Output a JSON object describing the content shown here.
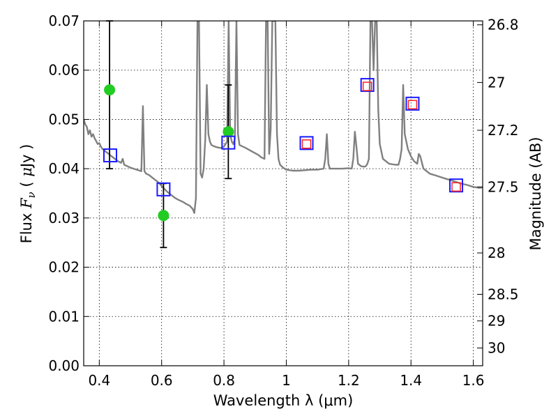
{
  "chart_data": {
    "type": "line",
    "title": "",
    "xlabel": "Wavelength  λ (μm)",
    "ylabel": "Flux  F_ν  ( μJy )",
    "ylabel_parts": {
      "prefix": "Flux  ",
      "symbol": "F",
      "subscript": "ν",
      "unit_open": "  ( ",
      "unit_mu": "μ",
      "unit_rest": "Jy )"
    },
    "y2label": "Magnitude (AB)",
    "xlim": [
      0.35,
      1.63
    ],
    "ylim": [
      0.0,
      0.07
    ],
    "grid": true,
    "x_ticks": [
      {
        "value": 0.4,
        "label": "0.4"
      },
      {
        "value": 0.6,
        "label": "0.6"
      },
      {
        "value": 0.8,
        "label": "0.8"
      },
      {
        "value": 1.0,
        "label": "1"
      },
      {
        "value": 1.2,
        "label": "1.2"
      },
      {
        "value": 1.4,
        "label": "1.4"
      },
      {
        "value": 1.6,
        "label": "1.6"
      }
    ],
    "y_ticks": [
      {
        "value": 0.0,
        "label": "0.00"
      },
      {
        "value": 0.01,
        "label": "0.01"
      },
      {
        "value": 0.02,
        "label": "0.02"
      },
      {
        "value": 0.03,
        "label": "0.03"
      },
      {
        "value": 0.04,
        "label": "0.04"
      },
      {
        "value": 0.05,
        "label": "0.05"
      },
      {
        "value": 0.06,
        "label": "0.06"
      },
      {
        "value": 0.07,
        "label": "0.07"
      }
    ],
    "y2_ticks": [
      {
        "flux": 0.0692,
        "label": "26.8"
      },
      {
        "flux": 0.0575,
        "label": "27"
      },
      {
        "flux": 0.0478,
        "label": "27.2"
      },
      {
        "flux": 0.0363,
        "label": "27.5"
      },
      {
        "flux": 0.0229,
        "label": "28"
      },
      {
        "flux": 0.0145,
        "label": "28.5"
      },
      {
        "flux": 0.0091,
        "label": "29"
      },
      {
        "flux": 0.0036,
        "label": "30"
      }
    ],
    "series": [
      {
        "kind": "line",
        "color": "#808080",
        "points": [
          [
            0.35,
            0.05
          ],
          [
            0.355,
            0.049
          ],
          [
            0.36,
            0.0485
          ],
          [
            0.365,
            0.047
          ],
          [
            0.37,
            0.0478
          ],
          [
            0.375,
            0.0465
          ],
          [
            0.38,
            0.047
          ],
          [
            0.385,
            0.0462
          ],
          [
            0.39,
            0.0456
          ],
          [
            0.395,
            0.045
          ],
          [
            0.4,
            0.0452
          ],
          [
            0.405,
            0.0445
          ],
          [
            0.41,
            0.044
          ],
          [
            0.415,
            0.0438
          ],
          [
            0.42,
            0.0435
          ],
          [
            0.43,
            0.043
          ],
          [
            0.44,
            0.0425
          ],
          [
            0.45,
            0.042
          ],
          [
            0.46,
            0.0415
          ],
          [
            0.47,
            0.0412
          ],
          [
            0.475,
            0.042
          ],
          [
            0.48,
            0.0408
          ],
          [
            0.49,
            0.0405
          ],
          [
            0.5,
            0.0402
          ],
          [
            0.51,
            0.04
          ],
          [
            0.52,
            0.0398
          ],
          [
            0.53,
            0.0396
          ],
          [
            0.535,
            0.0395
          ],
          [
            0.54,
            0.0527
          ],
          [
            0.545,
            0.0395
          ],
          [
            0.55,
            0.039
          ],
          [
            0.56,
            0.0387
          ],
          [
            0.57,
            0.0382
          ],
          [
            0.58,
            0.0377
          ],
          [
            0.59,
            0.0372
          ],
          [
            0.6,
            0.0365
          ],
          [
            0.61,
            0.0358
          ],
          [
            0.62,
            0.0352
          ],
          [
            0.63,
            0.0347
          ],
          [
            0.64,
            0.0342
          ],
          [
            0.65,
            0.0338
          ],
          [
            0.66,
            0.0335
          ],
          [
            0.67,
            0.0332
          ],
          [
            0.68,
            0.0328
          ],
          [
            0.69,
            0.0325
          ],
          [
            0.7,
            0.0318
          ],
          [
            0.705,
            0.031
          ],
          [
            0.71,
            0.034
          ],
          [
            0.715,
            0.07
          ],
          [
            0.72,
            0.07
          ],
          [
            0.725,
            0.039
          ],
          [
            0.73,
            0.0382
          ],
          [
            0.735,
            0.04
          ],
          [
            0.74,
            0.046
          ],
          [
            0.745,
            0.057
          ],
          [
            0.75,
            0.047
          ],
          [
            0.755,
            0.0455
          ],
          [
            0.76,
            0.0448
          ],
          [
            0.77,
            0.0445
          ],
          [
            0.78,
            0.0443
          ],
          [
            0.79,
            0.0442
          ],
          [
            0.8,
            0.0445
          ],
          [
            0.81,
            0.0455
          ],
          [
            0.815,
            0.07
          ],
          [
            0.82,
            0.047
          ],
          [
            0.825,
            0.0455
          ],
          [
            0.83,
            0.045
          ],
          [
            0.835,
            0.046
          ],
          [
            0.84,
            0.07
          ],
          [
            0.845,
            0.047
          ],
          [
            0.85,
            0.0448
          ],
          [
            0.87,
            0.0442
          ],
          [
            0.89,
            0.0435
          ],
          [
            0.91,
            0.0428
          ],
          [
            0.92,
            0.0423
          ],
          [
            0.93,
            0.042
          ],
          [
            0.935,
            0.07
          ],
          [
            0.94,
            0.07
          ],
          [
            0.945,
            0.043
          ],
          [
            0.95,
            0.048
          ],
          [
            0.955,
            0.07
          ],
          [
            0.96,
            0.07
          ],
          [
            0.965,
            0.07
          ],
          [
            0.97,
            0.047
          ],
          [
            0.975,
            0.042
          ],
          [
            0.98,
            0.0408
          ],
          [
            0.99,
            0.0402
          ],
          [
            1.0,
            0.0398
          ],
          [
            1.02,
            0.0396
          ],
          [
            1.04,
            0.0396
          ],
          [
            1.06,
            0.0397
          ],
          [
            1.08,
            0.0398
          ],
          [
            1.1,
            0.0398
          ],
          [
            1.12,
            0.04
          ],
          [
            1.125,
            0.042
          ],
          [
            1.13,
            0.047
          ],
          [
            1.135,
            0.041
          ],
          [
            1.14,
            0.04
          ],
          [
            1.16,
            0.04
          ],
          [
            1.18,
            0.04
          ],
          [
            1.2,
            0.0401
          ],
          [
            1.21,
            0.04
          ],
          [
            1.215,
            0.042
          ],
          [
            1.22,
            0.0475
          ],
          [
            1.225,
            0.0445
          ],
          [
            1.23,
            0.041
          ],
          [
            1.24,
            0.0405
          ],
          [
            1.25,
            0.0404
          ],
          [
            1.255,
            0.0405
          ],
          [
            1.26,
            0.041
          ],
          [
            1.265,
            0.042
          ],
          [
            1.27,
            0.07
          ],
          [
            1.275,
            0.07
          ],
          [
            1.28,
            0.06
          ],
          [
            1.285,
            0.07
          ],
          [
            1.29,
            0.07
          ],
          [
            1.295,
            0.052
          ],
          [
            1.3,
            0.045
          ],
          [
            1.31,
            0.042
          ],
          [
            1.33,
            0.041
          ],
          [
            1.35,
            0.0408
          ],
          [
            1.36,
            0.0408
          ],
          [
            1.365,
            0.042
          ],
          [
            1.37,
            0.044
          ],
          [
            1.375,
            0.057
          ],
          [
            1.38,
            0.047
          ],
          [
            1.39,
            0.044
          ],
          [
            1.4,
            0.0425
          ],
          [
            1.41,
            0.0415
          ],
          [
            1.42,
            0.041
          ],
          [
            1.425,
            0.043
          ],
          [
            1.43,
            0.0425
          ],
          [
            1.44,
            0.04
          ],
          [
            1.46,
            0.039
          ],
          [
            1.48,
            0.0386
          ],
          [
            1.5,
            0.0382
          ],
          [
            1.52,
            0.0378
          ],
          [
            1.54,
            0.0374
          ],
          [
            1.56,
            0.037
          ],
          [
            1.58,
            0.0367
          ],
          [
            1.6,
            0.0363
          ],
          [
            1.62,
            0.0361
          ],
          [
            1.63,
            0.0362
          ]
        ]
      },
      {
        "kind": "points",
        "marker": "circle",
        "color": "#22cc22",
        "points": [
          {
            "x": 0.433,
            "y": 0.056,
            "yerr_low": 0.04,
            "yerr_high": 0.07
          },
          {
            "x": 0.606,
            "y": 0.0305,
            "yerr_low": 0.024,
            "yerr_high": 0.037
          },
          {
            "x": 0.814,
            "y": 0.0475,
            "yerr_low": 0.038,
            "yerr_high": 0.057
          }
        ]
      },
      {
        "kind": "points",
        "marker": "open-square",
        "color": "#1a1aff",
        "points": [
          {
            "x": 0.435,
            "y": 0.0427
          },
          {
            "x": 0.606,
            "y": 0.0358
          },
          {
            "x": 0.814,
            "y": 0.0453
          },
          {
            "x": 1.065,
            "y": 0.0452
          },
          {
            "x": 1.26,
            "y": 0.057
          },
          {
            "x": 1.405,
            "y": 0.0532
          },
          {
            "x": 1.545,
            "y": 0.0366
          }
        ]
      },
      {
        "kind": "points",
        "marker": "open-square-small",
        "color": "#ff2020",
        "points": [
          {
            "x": 1.065,
            "y": 0.045
          },
          {
            "x": 1.26,
            "y": 0.0567
          },
          {
            "x": 1.405,
            "y": 0.053
          },
          {
            "x": 1.545,
            "y": 0.0363
          }
        ]
      }
    ]
  }
}
